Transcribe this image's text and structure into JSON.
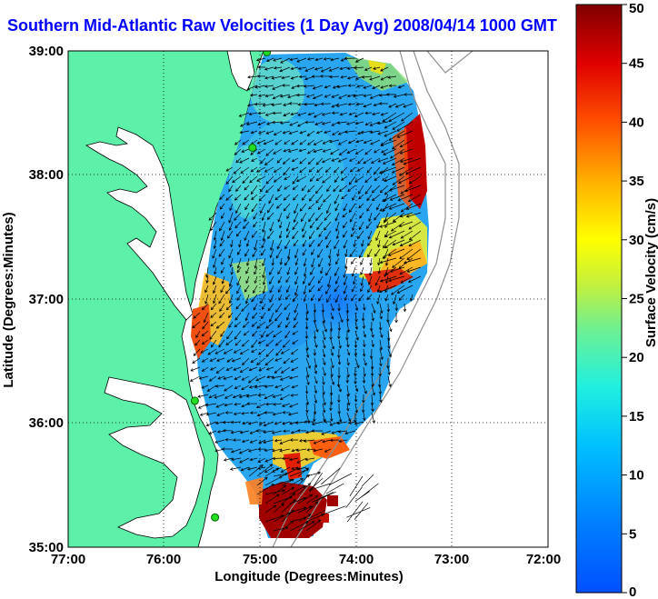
{
  "title": "Southern Mid-Atlantic Raw Velocities (1 Day Avg) 2008/04/14 1000 GMT",
  "x_axis": {
    "label": "Longitude (Degrees:Minutes)",
    "ticks": [
      "77:00",
      "76:00",
      "75:00",
      "74:00",
      "73:00",
      "72:00"
    ],
    "range": [
      -77,
      -72
    ]
  },
  "y_axis": {
    "label": "Latitude (Degrees:Minutes)",
    "ticks": [
      "39:00",
      "38:00",
      "37:00",
      "36:00",
      "35:00"
    ],
    "range": [
      35,
      39
    ]
  },
  "colorbar": {
    "label": "Surface Velocity (cm/s)",
    "ticks": [
      "50",
      "45",
      "40",
      "35",
      "30",
      "25",
      "20",
      "15",
      "10",
      "5",
      "0"
    ],
    "range": [
      0,
      50
    ],
    "colormap": "jet"
  },
  "colors": {
    "land": "#5cf0a8",
    "water": "#ffffff",
    "title": "#0000ff",
    "grid": "#000000",
    "vectors": "#000000",
    "stations": "#22dd22"
  },
  "stations": [
    {
      "lon": -74.93,
      "lat": 38.99
    },
    {
      "lon": -75.08,
      "lat": 38.22
    },
    {
      "lon": -75.68,
      "lat": 36.18
    },
    {
      "lon": -75.47,
      "lat": 35.24
    }
  ]
}
